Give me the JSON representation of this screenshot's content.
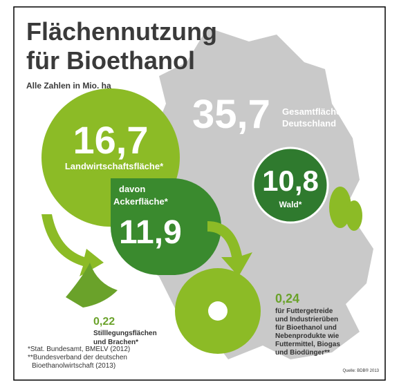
{
  "header": {
    "title": [
      "Flächennutzung",
      "für Bioethanol"
    ],
    "subtitle": "Alle Zahlen in Mio. ha"
  },
  "total": {
    "value": "35,7",
    "label": [
      "Gesamtfläche",
      "Deutschland"
    ]
  },
  "agriculture": {
    "value": "16,7",
    "label": "Landwirtschaftsfläche*"
  },
  "arable": {
    "label": [
      "davon",
      "Ackerfläche*"
    ],
    "value": "11,9"
  },
  "forest": {
    "value": "10,8",
    "label": "Wald*"
  },
  "fallow": {
    "value": "0,22",
    "label": [
      "Stilllegungsflächen",
      "und Brachen*"
    ]
  },
  "bioethanol": {
    "value": "0,24",
    "label": [
      "für Futtergetreide",
      "und Industrierüben",
      "für Bioethanol und",
      "Nebenprodukte wie",
      "Futtermittel, Biogas",
      "und Biodünger**"
    ]
  },
  "footnotes": [
    "*Stat. Bundesamt, BMELV (2012)",
    "**Bundesverband der deutschen",
    "Bioethanolwirtschaft (2013)"
  ],
  "source": "Quelle: BDB® 2013"
}
